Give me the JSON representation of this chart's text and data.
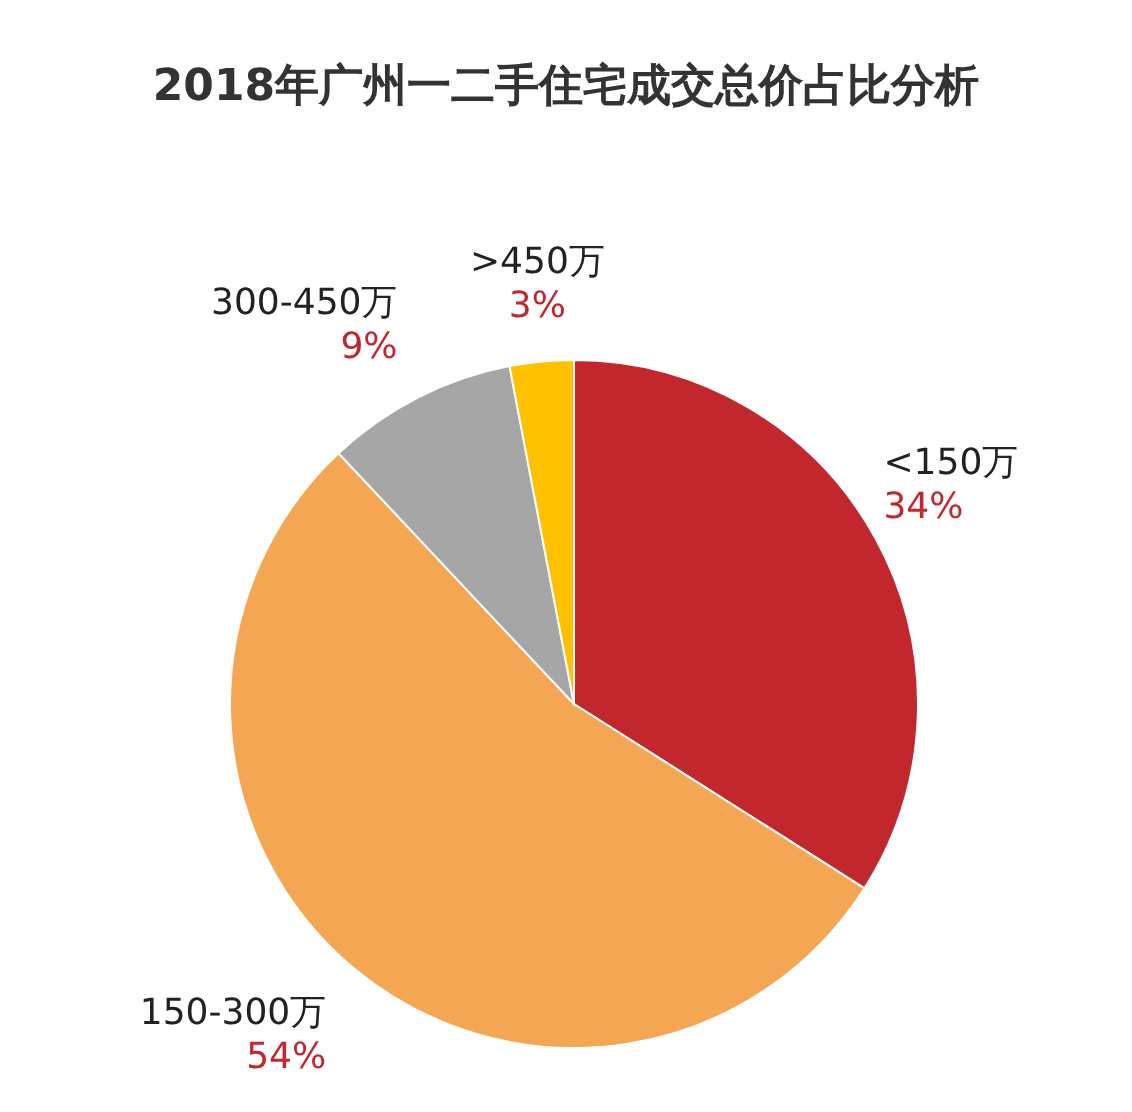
{
  "chart_data": {
    "type": "pie",
    "title": "2018年广州一二手住宅成交总价占比分析",
    "categories": [
      "<150万",
      "150-300万",
      "300-450万",
      ">450万"
    ],
    "values": [
      34,
      54,
      9,
      3
    ],
    "colors": [
      "#c1272d",
      "#f5a652",
      "#a6a6a6",
      "#ffc000"
    ],
    "value_labels": [
      "34%",
      "54%",
      "9%",
      "3%"
    ]
  }
}
